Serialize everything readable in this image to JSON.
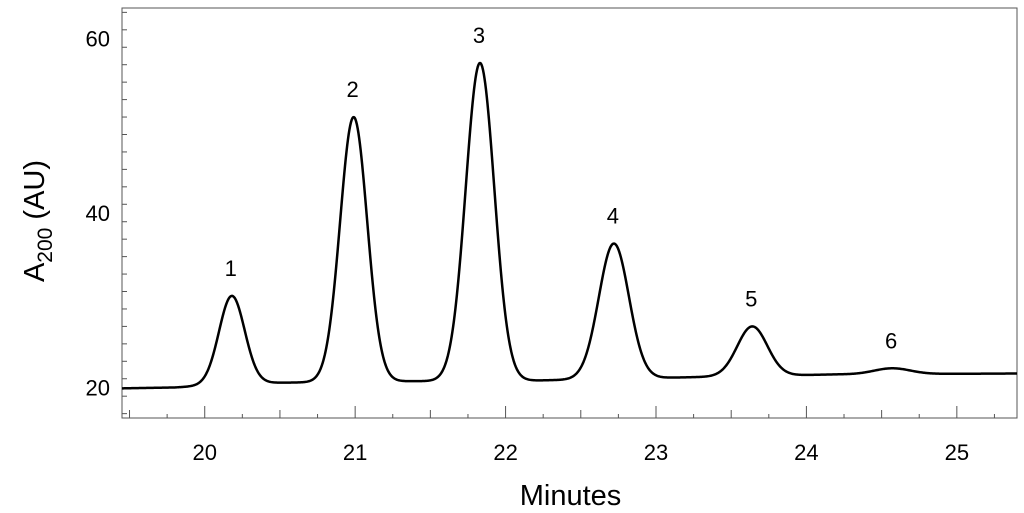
{
  "chart_data": {
    "type": "line",
    "title": "",
    "xlabel": "Minutes",
    "ylabel": {
      "prefix": "A",
      "subscript": "200",
      "suffix": " (AU)"
    },
    "xlim": [
      19.45,
      25.4
    ],
    "ylim": [
      16.5,
      63.5
    ],
    "x_ticks": [
      "20",
      "21",
      "22",
      "23",
      "24",
      "25"
    ],
    "y_ticks": [
      "20",
      "40",
      "60"
    ],
    "grid": false,
    "line_color": "#000000",
    "baseline": [
      [
        19.45,
        19.9
      ],
      [
        19.8,
        20.0
      ],
      [
        20.3,
        20.5
      ],
      [
        21.2,
        20.7
      ],
      [
        22.2,
        20.8
      ],
      [
        23.3,
        21.2
      ],
      [
        24.2,
        21.5
      ],
      [
        25.4,
        21.6
      ]
    ],
    "peaks": [
      {
        "label": "1",
        "x": 20.18,
        "y": 30.5,
        "sigma": 0.085
      },
      {
        "label": "2",
        "x": 20.99,
        "y": 51.0,
        "sigma": 0.09
      },
      {
        "label": "3",
        "x": 21.83,
        "y": 57.2,
        "sigma": 0.095
      },
      {
        "label": "4",
        "x": 22.72,
        "y": 36.5,
        "sigma": 0.1
      },
      {
        "label": "5",
        "x": 23.64,
        "y": 27.0,
        "sigma": 0.1
      },
      {
        "label": "6",
        "x": 24.57,
        "y": 22.2,
        "sigma": 0.12
      }
    ]
  }
}
